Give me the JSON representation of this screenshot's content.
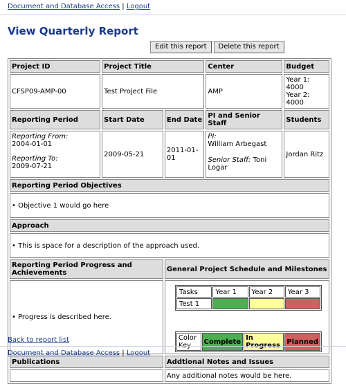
{
  "nav": {
    "docs_link": "Document and Database Access",
    "separator": "|",
    "logout_link": "Logout"
  },
  "page_title": "View Quarterly Report",
  "buttons": {
    "edit": "Edit this report",
    "delete": "Delete this report"
  },
  "headers": {
    "project_id": "Project ID",
    "project_title": "Project Title",
    "center": "Center",
    "budget": "Budget",
    "reporting_period": "Reporting Period",
    "start_date": "Start Date",
    "end_date": "End Date",
    "pi_staff": "PI and Senior Staff",
    "students": "Students",
    "objectives": "Reporting Period Objectives",
    "approach": "Approach",
    "progress": "Reporting Period Progress and Achievements",
    "schedule": "General Project Schedule and Milestones",
    "publications": "Publications",
    "notes": "Addtional Notes and Issues"
  },
  "project": {
    "id": "CFSP09-AMP-00",
    "title": "Test Project File",
    "center": "AMP",
    "budget_y1": "Year 1: 4000",
    "budget_y2": "Year 2: 4000"
  },
  "period": {
    "from_label": "Reporting From:",
    "from": "2004-01-01",
    "to_label": "Reporting To:",
    "to": "2009-07-21",
    "start": "2009-05-21",
    "end": "2011-01-01"
  },
  "staff": {
    "pi_label": "PI:",
    "pi": "William Arbegast",
    "senior_label": "Senior Staff:",
    "senior": "Toni Logar",
    "students": "Jordan Ritz"
  },
  "objectives_text": "• Objective 1 would go here",
  "approach_text": "• This is space for a description of the approach used.",
  "progress_text": "• Progress is described here.",
  "publications_text": "",
  "notes_text": "Any additional notes would be here.",
  "schedule": {
    "tasks_header": "Tasks",
    "years": [
      "Year 1",
      "Year 2",
      "Year 3"
    ],
    "task": "Test 1",
    "statuses": [
      "complete",
      "in-progress",
      "planned"
    ]
  },
  "key": {
    "label": "Color Key",
    "complete": "Complete",
    "in_progress": "In Progress",
    "planned": "Planned"
  },
  "colors": {
    "complete": "#4caf50",
    "in_progress": "#ffff99",
    "planned": "#d25f5f",
    "title": "#1a3a8c"
  },
  "back_link": "Back to report list"
}
